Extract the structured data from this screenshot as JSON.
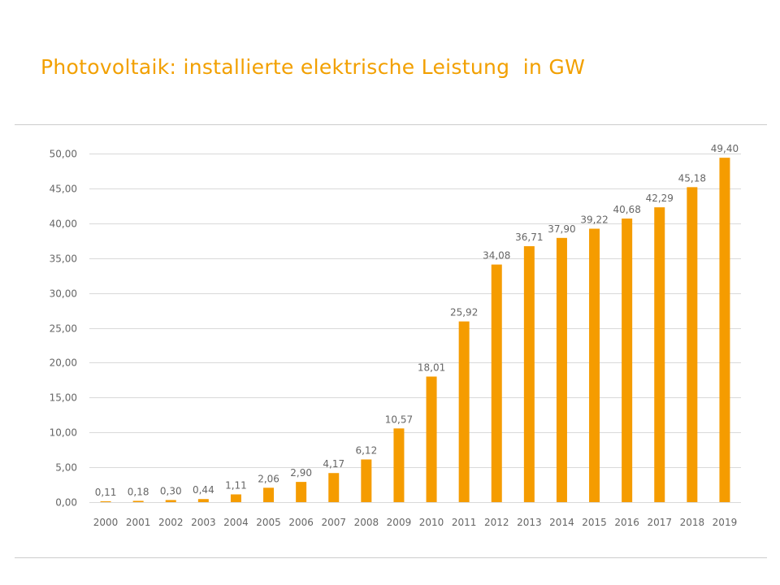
{
  "slide": {
    "title": "Photovoltaik: installierte elektrische Leistung  in GW"
  },
  "colors": {
    "title": "#f2a000",
    "bar": "#f59c00",
    "grid": "#d9d9d9",
    "text": "#666666"
  },
  "chart_data": {
    "type": "bar",
    "title": "",
    "xlabel": "",
    "ylabel": "",
    "ylim": [
      0,
      50
    ],
    "yticks": [
      0,
      5,
      10,
      15,
      20,
      25,
      30,
      35,
      40,
      45,
      50
    ],
    "ytick_labels": [
      "0,00",
      "5,00",
      "10,00",
      "15,00",
      "20,00",
      "25,00",
      "30,00",
      "35,00",
      "40,00",
      "45,00",
      "50,00"
    ],
    "grid": true,
    "legend": "none",
    "categories": [
      "2000",
      "2001",
      "2002",
      "2003",
      "2004",
      "2005",
      "2006",
      "2007",
      "2008",
      "2009",
      "2010",
      "2011",
      "2012",
      "2013",
      "2014",
      "2015",
      "2016",
      "2017",
      "2018",
      "2019"
    ],
    "values": [
      0.11,
      0.18,
      0.3,
      0.44,
      1.11,
      2.06,
      2.9,
      4.17,
      6.12,
      10.57,
      18.01,
      25.92,
      34.08,
      36.71,
      37.9,
      39.22,
      40.68,
      42.29,
      45.18,
      49.4
    ],
    "value_labels": [
      "0,11",
      "0,18",
      "0,30",
      "0,44",
      "1,11",
      "2,06",
      "2,90",
      "4,17",
      "6,12",
      "10,57",
      "18,01",
      "25,92",
      "34,08",
      "36,71",
      "37,90",
      "39,22",
      "40,68",
      "42,29",
      "45,18",
      "49,40"
    ]
  }
}
